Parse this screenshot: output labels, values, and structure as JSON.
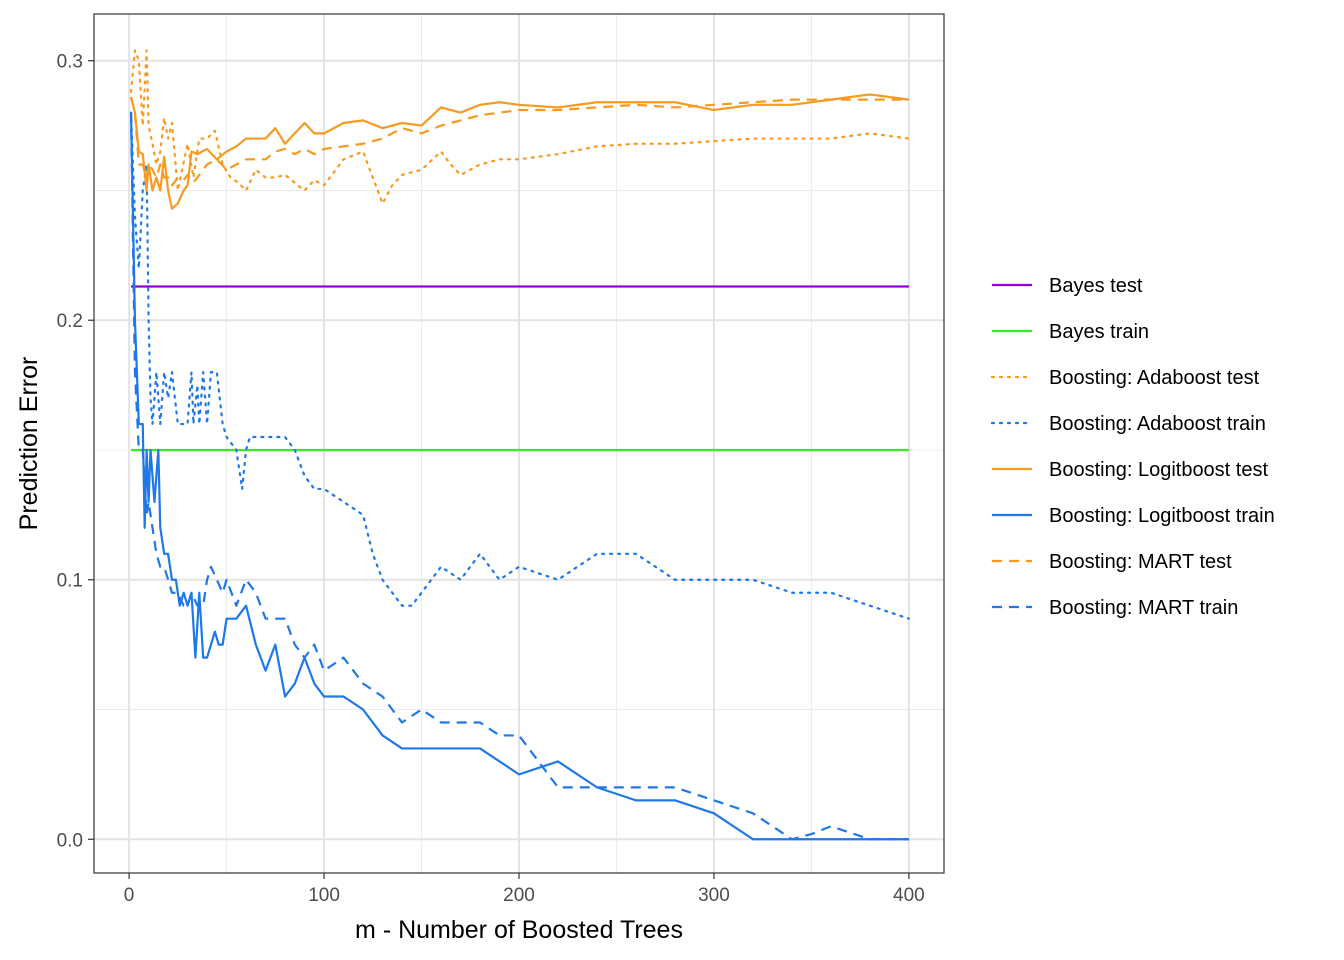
{
  "chart_data": {
    "type": "line",
    "title": "",
    "xlabel": "m - Number of Boosted Trees",
    "ylabel": "Prediction Error",
    "xlim": [
      -18,
      418
    ],
    "ylim": [
      -0.013,
      0.318
    ],
    "x_ticks": [
      0,
      100,
      200,
      300,
      400
    ],
    "x_tick_labels": [
      "0",
      "100",
      "200",
      "300",
      "400"
    ],
    "y_ticks": [
      0.0,
      0.1,
      0.2,
      0.3
    ],
    "y_tick_labels": [
      "0.0",
      "0.1",
      "0.2",
      "0.3"
    ],
    "grid": true,
    "legend_position": "right",
    "series": [
      {
        "name": "Bayes test",
        "color": "#9400D3",
        "linestyle": "solid",
        "x": [
          1,
          400
        ],
        "y": [
          0.213,
          0.213
        ]
      },
      {
        "name": "Bayes train",
        "color": "#33EE22",
        "linestyle": "solid",
        "x": [
          1,
          400
        ],
        "y": [
          0.15,
          0.15
        ]
      },
      {
        "name": "Boosting: Adaboost test",
        "color": "#F89A20",
        "linestyle": "dotted",
        "x": [
          1,
          3,
          5,
          7,
          9,
          10,
          12,
          14,
          16,
          18,
          20,
          22,
          25,
          30,
          33,
          36,
          40,
          44,
          48,
          52,
          56,
          60,
          65,
          70,
          75,
          80,
          85,
          90,
          95,
          100,
          110,
          120,
          125,
          130,
          135,
          140,
          150,
          160,
          165,
          170,
          180,
          190,
          200,
          220,
          240,
          260,
          280,
          300,
          320,
          340,
          360,
          380,
          400
        ],
        "y": [
          0.288,
          0.304,
          0.3,
          0.275,
          0.304,
          0.275,
          0.268,
          0.26,
          0.265,
          0.278,
          0.27,
          0.276,
          0.25,
          0.268,
          0.255,
          0.27,
          0.27,
          0.273,
          0.26,
          0.255,
          0.253,
          0.25,
          0.258,
          0.255,
          0.255,
          0.256,
          0.253,
          0.25,
          0.254,
          0.252,
          0.262,
          0.265,
          0.255,
          0.245,
          0.252,
          0.256,
          0.258,
          0.265,
          0.26,
          0.256,
          0.26,
          0.262,
          0.262,
          0.264,
          0.267,
          0.268,
          0.268,
          0.269,
          0.27,
          0.27,
          0.27,
          0.272,
          0.27
        ]
      },
      {
        "name": "Boosting: Adaboost train",
        "color": "#1F78E8",
        "linestyle": "dotted",
        "x": [
          1,
          3,
          5,
          7,
          9,
          10,
          11,
          12,
          14,
          16,
          18,
          20,
          22,
          25,
          30,
          32,
          33,
          35,
          36,
          38,
          40,
          42,
          45,
          48,
          50,
          55,
          58,
          60,
          62,
          65,
          70,
          80,
          85,
          90,
          95,
          100,
          110,
          120,
          125,
          130,
          140,
          145,
          150,
          160,
          170,
          180,
          190,
          200,
          220,
          240,
          250,
          260,
          280,
          300,
          320,
          340,
          350,
          360,
          380,
          400
        ],
        "y": [
          0.28,
          0.24,
          0.22,
          0.25,
          0.26,
          0.2,
          0.17,
          0.16,
          0.18,
          0.16,
          0.18,
          0.17,
          0.18,
          0.16,
          0.16,
          0.18,
          0.16,
          0.175,
          0.16,
          0.18,
          0.16,
          0.18,
          0.18,
          0.16,
          0.155,
          0.15,
          0.135,
          0.15,
          0.155,
          0.155,
          0.155,
          0.155,
          0.15,
          0.14,
          0.135,
          0.135,
          0.13,
          0.125,
          0.11,
          0.1,
          0.09,
          0.09,
          0.095,
          0.105,
          0.1,
          0.11,
          0.1,
          0.105,
          0.1,
          0.11,
          0.11,
          0.11,
          0.1,
          0.1,
          0.1,
          0.095,
          0.095,
          0.095,
          0.09,
          0.085
        ]
      },
      {
        "name": "Boosting: Logitboost test",
        "color": "#F89A20",
        "linestyle": "solid",
        "x": [
          1,
          3,
          5,
          7,
          9,
          10,
          12,
          14,
          16,
          18,
          20,
          22,
          25,
          28,
          30,
          32,
          35,
          40,
          45,
          50,
          55,
          60,
          65,
          70,
          75,
          80,
          85,
          90,
          95,
          100,
          110,
          120,
          130,
          140,
          150,
          160,
          170,
          180,
          190,
          200,
          220,
          240,
          260,
          280,
          300,
          320,
          340,
          360,
          380,
          400
        ],
        "y": [
          0.286,
          0.28,
          0.265,
          0.264,
          0.25,
          0.26,
          0.25,
          0.255,
          0.25,
          0.263,
          0.25,
          0.243,
          0.245,
          0.25,
          0.252,
          0.265,
          0.264,
          0.266,
          0.262,
          0.265,
          0.267,
          0.27,
          0.27,
          0.27,
          0.274,
          0.268,
          0.272,
          0.276,
          0.272,
          0.272,
          0.276,
          0.277,
          0.274,
          0.276,
          0.275,
          0.282,
          0.28,
          0.283,
          0.284,
          0.283,
          0.282,
          0.284,
          0.284,
          0.284,
          0.281,
          0.283,
          0.283,
          0.285,
          0.287,
          0.285
        ]
      },
      {
        "name": "Boosting: Logitboost train",
        "color": "#1F78E8",
        "linestyle": "solid",
        "x": [
          1,
          3,
          5,
          7,
          8,
          9,
          10,
          11,
          12,
          13,
          14,
          15,
          16,
          18,
          20,
          22,
          24,
          26,
          28,
          30,
          32,
          34,
          36,
          38,
          40,
          42,
          44,
          46,
          48,
          50,
          55,
          60,
          65,
          70,
          75,
          80,
          85,
          90,
          95,
          100,
          110,
          120,
          130,
          140,
          150,
          160,
          180,
          200,
          220,
          240,
          260,
          280,
          300,
          320,
          340,
          360,
          380,
          400
        ],
        "y": [
          0.28,
          0.2,
          0.16,
          0.16,
          0.12,
          0.15,
          0.13,
          0.15,
          0.14,
          0.13,
          0.14,
          0.15,
          0.12,
          0.11,
          0.11,
          0.1,
          0.1,
          0.09,
          0.095,
          0.09,
          0.095,
          0.07,
          0.095,
          0.07,
          0.07,
          0.075,
          0.08,
          0.075,
          0.075,
          0.085,
          0.085,
          0.09,
          0.075,
          0.065,
          0.075,
          0.055,
          0.06,
          0.07,
          0.06,
          0.055,
          0.055,
          0.05,
          0.04,
          0.035,
          0.035,
          0.035,
          0.035,
          0.025,
          0.03,
          0.02,
          0.015,
          0.015,
          0.01,
          0.0,
          0.0,
          0.0,
          0.0,
          0.0
        ]
      },
      {
        "name": "Boosting: MART test",
        "color": "#F89A20",
        "linestyle": "dashed",
        "x": [
          1,
          3,
          5,
          7,
          9,
          10,
          12,
          14,
          16,
          18,
          20,
          22,
          25,
          28,
          30,
          33,
          35,
          40,
          45,
          50,
          55,
          60,
          65,
          70,
          75,
          80,
          85,
          90,
          95,
          100,
          110,
          120,
          130,
          140,
          150,
          160,
          170,
          180,
          190,
          200,
          220,
          240,
          260,
          280,
          300,
          320,
          340,
          360,
          380,
          400
        ],
        "y": [
          0.286,
          0.28,
          0.26,
          0.26,
          0.255,
          0.26,
          0.258,
          0.255,
          0.26,
          0.255,
          0.255,
          0.252,
          0.255,
          0.254,
          0.256,
          0.253,
          0.255,
          0.26,
          0.262,
          0.258,
          0.26,
          0.262,
          0.262,
          0.262,
          0.265,
          0.266,
          0.264,
          0.266,
          0.264,
          0.266,
          0.267,
          0.268,
          0.27,
          0.274,
          0.272,
          0.275,
          0.277,
          0.279,
          0.28,
          0.281,
          0.281,
          0.282,
          0.283,
          0.282,
          0.283,
          0.284,
          0.285,
          0.285,
          0.285,
          0.285
        ]
      },
      {
        "name": "Boosting: MART train",
        "color": "#1F78E8",
        "linestyle": "dashed",
        "x": [
          1,
          3,
          5,
          7,
          9,
          10,
          12,
          14,
          16,
          18,
          20,
          22,
          25,
          28,
          30,
          32,
          35,
          38,
          40,
          42,
          45,
          48,
          50,
          55,
          60,
          65,
          70,
          75,
          80,
          85,
          90,
          95,
          100,
          110,
          120,
          130,
          140,
          150,
          160,
          180,
          190,
          200,
          210,
          220,
          240,
          260,
          280,
          300,
          320,
          340,
          350,
          360,
          380,
          400
        ],
        "y": [
          0.28,
          0.18,
          0.15,
          0.15,
          0.125,
          0.13,
          0.12,
          0.11,
          0.105,
          0.105,
          0.1,
          0.095,
          0.095,
          0.09,
          0.09,
          0.095,
          0.09,
          0.09,
          0.1,
          0.105,
          0.1,
          0.095,
          0.1,
          0.09,
          0.1,
          0.095,
          0.085,
          0.085,
          0.085,
          0.075,
          0.07,
          0.075,
          0.065,
          0.07,
          0.06,
          0.055,
          0.045,
          0.05,
          0.045,
          0.045,
          0.04,
          0.04,
          0.03,
          0.02,
          0.02,
          0.02,
          0.02,
          0.015,
          0.01,
          0.0,
          0.002,
          0.005,
          0.0,
          0.0
        ]
      }
    ]
  }
}
